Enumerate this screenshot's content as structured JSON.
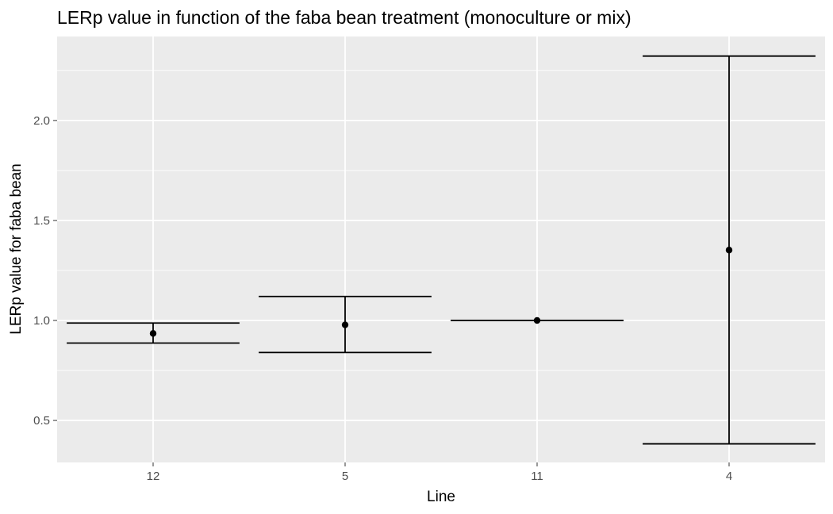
{
  "chart_data": {
    "type": "errorbar",
    "title": "LERp value in function of the faba bean treatment (monoculture or mix)",
    "xlabel": "Line",
    "ylabel": "LERp value for faba bean",
    "categories": [
      "12",
      "5",
      "11",
      "4"
    ],
    "points": [
      {
        "x": "12",
        "y": 0.935,
        "ymin": 0.887,
        "ymax": 0.987
      },
      {
        "x": "5",
        "y": 0.978,
        "ymin": 0.84,
        "ymax": 1.12
      },
      {
        "x": "11",
        "y": 1.0,
        "ymin": 1.0,
        "ymax": 1.0
      },
      {
        "x": "4",
        "y": 1.352,
        "ymin": 0.383,
        "ymax": 2.322
      }
    ],
    "yticks": [
      0.5,
      1.0,
      1.5,
      2.0
    ],
    "ytick_labels": [
      "0.5",
      "1.0",
      "1.5",
      "2.0"
    ],
    "ylim": [
      0.29,
      2.42
    ],
    "grid": true,
    "legend": "none",
    "colors": {
      "panel_background": "#EBEBEB",
      "grid": "#FFFFFF",
      "marks": "#000000",
      "tick_text": "#4D4D4D"
    }
  }
}
